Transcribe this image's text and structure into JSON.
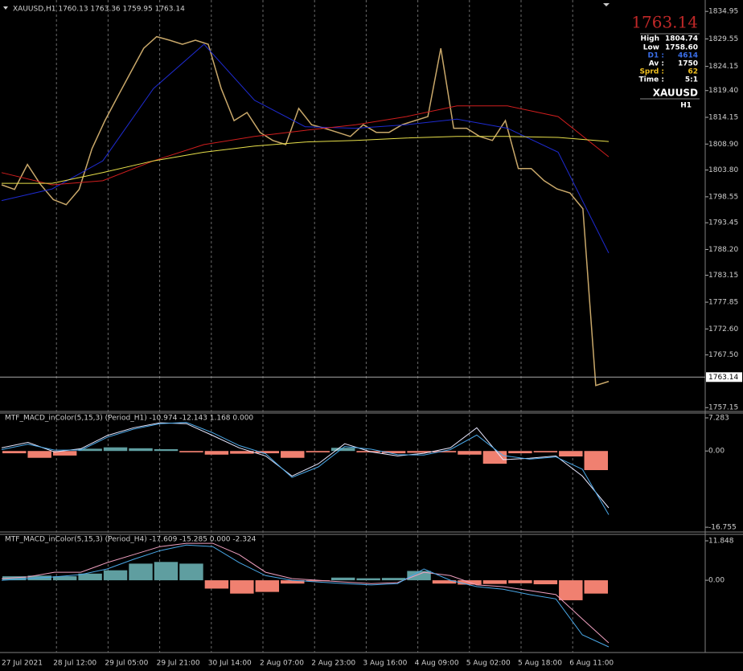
{
  "chart_data": [
    {
      "type": "line",
      "title": "XAUUSD,H1 1760.13 1763.36 1759.95 1763.14",
      "ylim": [
        1756.4,
        1836.4
      ],
      "yticks": [
        1834.95,
        1829.55,
        1824.15,
        {
          "value": 1819.4,
          "label": "1819.40"
        },
        1814.15,
        {
          "value": 1808.9,
          "label": "1808.90"
        },
        {
          "value": 1803.8,
          "label": "1803.80"
        },
        1798.55,
        1793.45,
        {
          "value": 1788.2,
          "label": "1788.20"
        },
        1783.15,
        1777.85,
        {
          "value": 1772.6,
          "label": "1772.60"
        },
        {
          "value": 1767.5,
          "label": "1767.50"
        },
        1757.15
      ],
      "last_price": 1763.14,
      "series": [
        {
          "color": "#c9a86a",
          "values": [
            1800.9,
            1800,
            1804.9,
            1801,
            1798,
            1797,
            1800,
            1808,
            1813.5,
            1818.3,
            1823,
            1827.7,
            1830,
            1829.3,
            1828.5,
            1829.3,
            1828.5,
            1819.8,
            1813.5,
            1815.1,
            1811.2,
            1809.6,
            1808.8,
            1815.9,
            1812.7,
            1812,
            1811.2,
            1810.4,
            1812.7,
            1811.2,
            1811.2,
            1812.7,
            1813.5,
            1814.3,
            1827.7,
            1812,
            1812,
            1810.4,
            1809.6,
            1813.5,
            1804.1,
            1804.1,
            1801.7,
            1800.1,
            1799.3,
            1796.2,
            1761.5,
            1762.3
          ]
        },
        {
          "color": "#1e2bd0",
          "values": [
            1797.8,
            1800.1,
            1805.6,
            1819.8,
            1828.5,
            1817.5,
            1812.3,
            1812,
            1812.7,
            1813.8,
            1812,
            1807.3,
            1787.5
          ]
        },
        {
          "color": "#d01e1e",
          "values": [
            1803.3,
            1800.9,
            1801.7,
            1805.6,
            1808.8,
            1810.4,
            1811.6,
            1812.7,
            1814.3,
            1816.4,
            1816.4,
            1814.3,
            1806.4
          ]
        },
        {
          "color": "#e8e04a",
          "values": [
            1801.2,
            1801.2,
            1803.3,
            1805.6,
            1807.3,
            1808.5,
            1809.3,
            1809.6,
            1810.1,
            1810.4,
            1810.4,
            1810.2,
            1809.4
          ]
        }
      ]
    },
    {
      "type": "line",
      "title": "MTF_MACD_inColor(5,15,3) (Period_H1) -10.974 -12.143 1.168 0.000",
      "ylim": [
        -17.8,
        8.34
      ],
      "yticks": [
        7.283,
        {
          "value": 0,
          "label": "0.00"
        },
        -16.755
      ],
      "histogram": {
        "up_color": "#5f9ea0",
        "down_color": "#f08070",
        "values": [
          -0.5,
          -1.5,
          -1,
          0.5,
          0.8,
          0.6,
          0.4,
          -0.3,
          -0.8,
          -0.6,
          -0.5,
          -1.5,
          -0.3,
          0.7,
          -0.3,
          -0.5,
          -0.4,
          -0.3,
          -0.8,
          -2.8,
          -0.5,
          -0.3,
          -1.2,
          -4.2
        ]
      },
      "series": [
        {
          "color": "#e8e8ff",
          "values": [
            0.7,
            1.9,
            -0.2,
            0.5,
            3.4,
            5.1,
            6.2,
            6,
            3.4,
            0.7,
            -1.1,
            -5.5,
            -2.8,
            1.6,
            -0.2,
            -1.1,
            -0.5,
            0.7,
            5.1,
            -1.9,
            -1.6,
            -1.1,
            -5.5,
            -12.5
          ]
        },
        {
          "color": "#4aa8e8",
          "values": [
            0.3,
            1.5,
            0.2,
            0.2,
            3,
            4.8,
            6,
            6.3,
            4,
            1.2,
            -0.6,
            -5.8,
            -3.5,
            1,
            0.4,
            -0.8,
            -0.9,
            0.3,
            3.5,
            -1,
            -1.8,
            -1.3,
            -4,
            -14
          ]
        }
      ]
    },
    {
      "type": "line",
      "title": "MTF_MACD_inColor(5,15,3) (Period_H4) -17.609 -15.285 0.000 -2.324",
      "ylim": [
        -21.7,
        13.78
      ],
      "yticks": [
        11.848,
        {
          "value": 0,
          "label": "0.00"
        }
      ],
      "histogram": {
        "up_color": "#5f9ea0",
        "down_color": "#f08070",
        "values": [
          1.2,
          1.4,
          1.2,
          2,
          3,
          5,
          5.5,
          5,
          -2.5,
          -4,
          -3.5,
          -1,
          -0.3,
          0.8,
          0.6,
          0.7,
          2.8,
          -1,
          -1.3,
          -1.1,
          -0.9,
          -1.2,
          -6,
          -4
        ]
      },
      "series": [
        {
          "color": "#f0a0c0",
          "values": [
            0.5,
            1,
            2.4,
            2.4,
            5.3,
            7.7,
            10.1,
            11.1,
            11.1,
            7.7,
            2.4,
            0.5,
            0,
            -0.5,
            -1,
            -0.7,
            2.4,
            1.4,
            -1.4,
            -1.9,
            -3.1,
            -4.3,
            -11.6,
            -18.8
          ]
        },
        {
          "color": "#4aa8e8",
          "values": [
            0,
            0.5,
            1,
            1.7,
            3.4,
            6.3,
            8.9,
            10.6,
            10.1,
            5.3,
            1.4,
            0,
            -0.5,
            -1,
            -1.4,
            -1,
            3.4,
            0,
            -1.9,
            -2.7,
            -4.3,
            -5.6,
            -16.4,
            -20
          ]
        }
      ]
    }
  ],
  "time_axis": {
    "labels": [
      "27 Jul 2021",
      "28 Jul 12:00",
      "29 Jul 05:00",
      "29 Jul 21:00",
      "30 Jul 14:00",
      "2 Aug 07:00",
      "2 Aug 23:00",
      "3 Aug 16:00",
      "4 Aug 09:00",
      "5 Aug 02:00",
      "5 Aug 18:00",
      "6 Aug 11:00"
    ]
  },
  "info": {
    "high_label": "High",
    "high": 1804.74,
    "low_label": "Low",
    "low": 1758.6,
    "low_text": "1758.60",
    "d1_label": "D1 :",
    "d1": 4614,
    "av_label": "Av :",
    "av": 1750,
    "sprd_label": "Sprd :",
    "sprd": 62,
    "time_label": "Time :",
    "time": "5:1",
    "symbol": "XAUUSD",
    "period": "H1"
  }
}
